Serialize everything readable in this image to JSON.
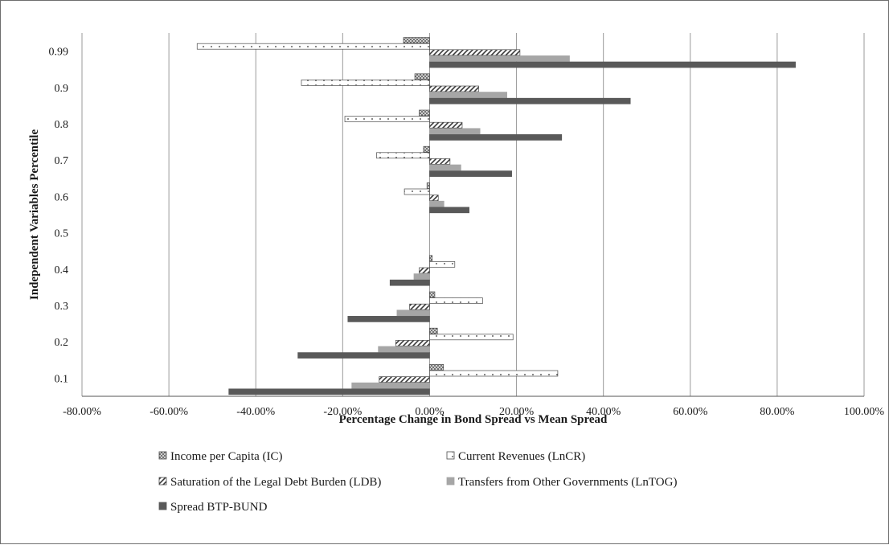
{
  "chart_data": {
    "type": "bar",
    "orientation": "horizontal",
    "xlabel": "Percentage Change in Bond Spread vs Mean Spread",
    "ylabel": "Independent Variables Percentile",
    "xlim": [
      -80,
      100
    ],
    "x_ticks": [
      -80,
      -60,
      -40,
      -20,
      0,
      20,
      40,
      60,
      80,
      100
    ],
    "x_tick_labels": [
      "-80.00%",
      "-60.00%",
      "-40.00%",
      "-20.00%",
      "0.00%",
      "20.00%",
      "40.00%",
      "60.00%",
      "80.00%",
      "100.00%"
    ],
    "grid": "vertical gridlines",
    "legend_position": "bottom",
    "categories": [
      "0.1",
      "0.2",
      "0.3",
      "0.4",
      "0.5",
      "0.6",
      "0.7",
      "0.8",
      "0.9",
      "0.99"
    ],
    "series": [
      {
        "name": "Income per Capita (IC)",
        "pattern": "crosshatch",
        "color": "#4d4d4d",
        "values": [
          3.2,
          1.8,
          1.2,
          0.6,
          0,
          -0.6,
          -1.4,
          -2.4,
          -3.4,
          -6.0
        ]
      },
      {
        "name": "Current Revenues (LnCR)",
        "pattern": "dots",
        "color": "#ffffff",
        "values": [
          29.5,
          19.2,
          12.2,
          5.8,
          0,
          -5.8,
          -12.2,
          -19.5,
          -29.5,
          -53.5
        ]
      },
      {
        "name": "Saturation of the Legal Debt Burden (LDB)",
        "pattern": "diagonal",
        "color": "#ffffff",
        "values": [
          -11.6,
          -7.8,
          -4.6,
          -2.4,
          0,
          2.0,
          4.7,
          7.5,
          11.3,
          20.8
        ]
      },
      {
        "name": "Transfers from Other Governments (LnTOG)",
        "pattern": "solid",
        "color": "#a6a6a6",
        "values": [
          -17.9,
          -11.8,
          -7.5,
          -3.6,
          0,
          3.3,
          7.2,
          11.6,
          17.8,
          32.2
        ]
      },
      {
        "name": "Spread BTP-BUND",
        "pattern": "solid",
        "color": "#595959",
        "values": [
          -46.2,
          -30.3,
          -18.8,
          -9.1,
          0,
          9.1,
          18.9,
          30.4,
          46.2,
          84.2
        ]
      }
    ]
  }
}
